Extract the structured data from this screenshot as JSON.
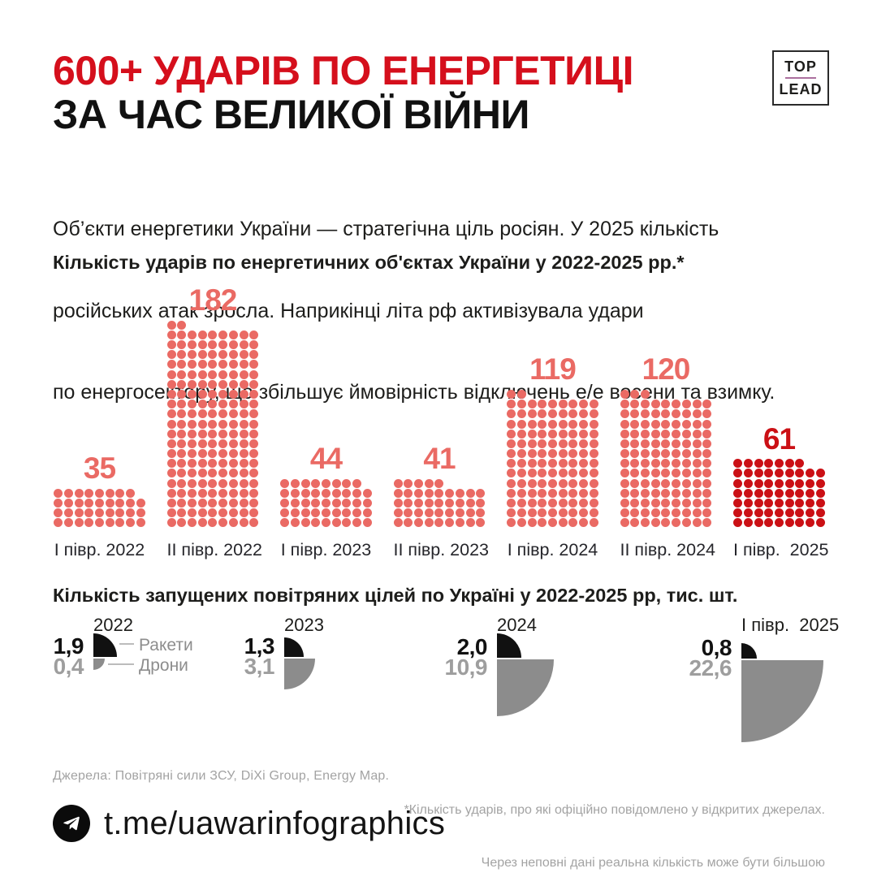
{
  "header": {
    "title_line1": "600+ УДАРІВ ПО ЕНЕРГЕТИЦІ",
    "title_line2": "ЗА ЧАС ВЕЛИКОЇ ВІЙНИ",
    "logo_top": "TOP",
    "logo_bottom": "LEAD"
  },
  "intro": {
    "lines": [
      "Об’єкти енергетики України — стратегічна ціль росіян. У 2025 кількість",
      "російських атак зросла. Наприкінці літа рф активізувала удари",
      "по енергосектору, що збільшує ймовірність відключень е/е восени та взимку."
    ]
  },
  "colors": {
    "title_red": "#d50f1c",
    "dot_salmon": "#ea6a64",
    "dot_dark_red": "#cb1015",
    "pie_black": "#111111",
    "pie_gray": "#8c8c8c",
    "muted_text": "#a3a3a3",
    "logo_divider": "#ab6f9e"
  },
  "chart_data": [
    {
      "type": "pictogram-bar",
      "title": "Кількість ударів по енергетичних об'єктах України у 2022-2025 рр.*",
      "dots_per_row": 9,
      "categories": [
        "І півр. 2022",
        "ІІ півр. 2022",
        "І півр. 2023",
        "ІІ півр. 2023",
        "І півр. 2024",
        "ІІ півр. 2024",
        "І півр.  2025"
      ],
      "values": [
        35,
        182,
        44,
        41,
        119,
        120,
        61
      ],
      "bar_colors": [
        "#ea6a64",
        "#ea6a64",
        "#ea6a64",
        "#ea6a64",
        "#ea6a64",
        "#ea6a64",
        "#cb1015"
      ]
    },
    {
      "type": "quarter-pie",
      "title": "Кількість запущених повітряних цілей по Україні у 2022-2025 рр, тис. шт.",
      "categories": [
        "2022",
        "2023",
        "2024",
        "І півр.  2025"
      ],
      "series": [
        {
          "name": "Ракети",
          "color": "#111111",
          "values": [
            1.9,
            1.3,
            2.0,
            0.8
          ],
          "labels": [
            "1,9",
            "1,3",
            "2,0",
            "0,8"
          ]
        },
        {
          "name": "Дрони",
          "color": "#8c8c8c",
          "values": [
            0.4,
            3.1,
            10.9,
            22.6
          ],
          "labels": [
            "0,4",
            "3,1",
            "10,9",
            "22,6"
          ]
        }
      ]
    }
  ],
  "footer": {
    "sources": "Джерела: Повітряні сили ЗСУ, DiXi Group, Energy Map.",
    "footnote_lines": [
      "*Кількість ударів, про які офіційно повідомлено у відкритих джерелах.",
      "Через неповні дані реальна кількість може бути більшою"
    ],
    "telegram": "t.me/uawarinfographics"
  }
}
